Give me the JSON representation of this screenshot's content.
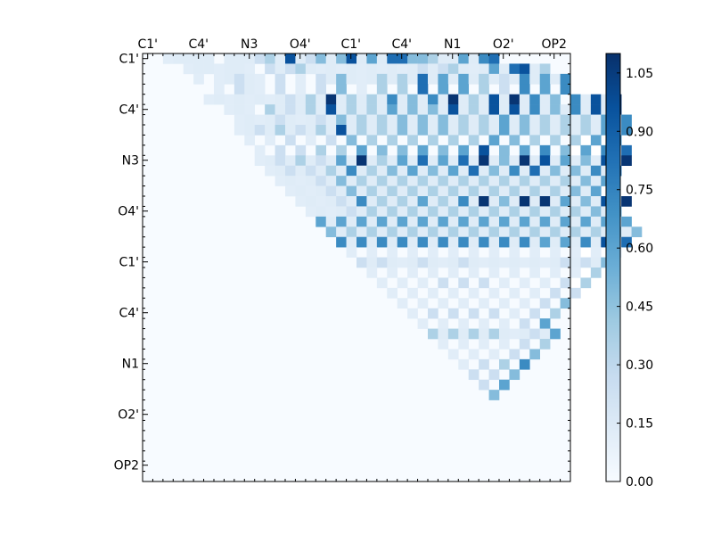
{
  "chart_data": {
    "type": "heatmap",
    "title": "",
    "xlabel": "",
    "ylabel": "",
    "tick_labels": [
      "C1'",
      "C4'",
      "N3",
      "O4'",
      "C1'",
      "C4'",
      "N1",
      "O2'",
      "OP2"
    ],
    "grid_size": 42,
    "colormap": "Blues",
    "zlim": [
      0,
      1.1
    ],
    "colorbar_ticks": [
      "0.00",
      "0.15",
      "0.30",
      "0.45",
      "0.60",
      "0.75",
      "0.90",
      "1.05"
    ],
    "colors": {
      "low": "#f7fbff",
      "high": "#08306b",
      "axis": "#000000"
    },
    "matrix_structure": "upper-triangular; lower triangle is zero",
    "matrix_rows": [
      "  1.... ...23.8.24.48.5.77443..5.67",
      "    1..1..1 2.23.1.1.1.1.1.2.23.1.5.78.3",
      "     1 1.2.1 2 1 2.4.1.3.3.7.5.5.3.2.6.5.6",
      "       1 2.1 2 1 2 4 1 3 3 7 5 5 3 2 6 5 6",
      "      1.1.1.1.2.3.9.3.3.6.4.6.9.3.8.9.6.4 6.8.9",
      "        1.1 3.2.3.8.3.3.5.4.4.8.3.8.8.6.4.6.8.9",
      "         1.1.2.1.2.4.3.3.4.4.4.3.3.5.4.3.3.3.5.6",
      "         1.2.3.2.3.8.3.3.4.4.4.3.3.5.4.3.3.3.5.6",
      "          1 1 2 1 2 4 3 3 3 3 3 3 5 4 3 3 3 5 6",
      "           1 2 2 3 3 5 4 4 5 4 5 8 4 5 6 4 5 6 7",
      "           1.2.3.2.5.9.3.5.7.5.7.9.4.9.8.5.4.8.9",
      "            1.2.2.3.6.3.4.5.4.5.7.4.6.7.4.4.6.7",
      "             1.1.2.4.3.3.3.3.3.3.3.3.3.3.3.4.5",
      "              1.1.2.4.3.3.3.3.3.3.3.3.3.3.4.5",
      "               1.1.2.6.3.3.5.3.6.9.4.9.9.5.4.8.9",
      "                1.1.2.3.3.3.3.3.3.3.3.3.3.3.4.5",
      "                 5.5.5.5.5.5.5.5.5.5.5.5.5.5.5.5",
      "                  4.3.3.3.3.3.3.3.3.3.3.3.3.3.4.4",
      "                   6.6.6.6.6.6.6.6.6.6.5.5.6.8.7",
      "                    1 1 1 1 1 1 1 1 1 1 1 1 1 1",
      "                     2.2.1.2.1.2.1.1.1.1.2.2.4",
      "                      1 1 1 1 1 1 1 1 1 1 1 3",
      "                       1 1 1 2 2 2 1 1 1 2 3",
      "                        1 1 1 1 1 1 1 1 2 2",
      "                         1 1 1 1 1 1 1 2 4",
      "                          1 2 2 2 2 1 2 3",
      "                           1 1 1 1 1 2 5",
      "                            3.3.3.3.1.2.5",
      "                             1 1 1 1 2 3",
      "                              1 1 1 2 4",
      "                               1 2 3 6",
      "                                2 2 4",
      "                                 2 5",
      "                                  4"
    ]
  }
}
